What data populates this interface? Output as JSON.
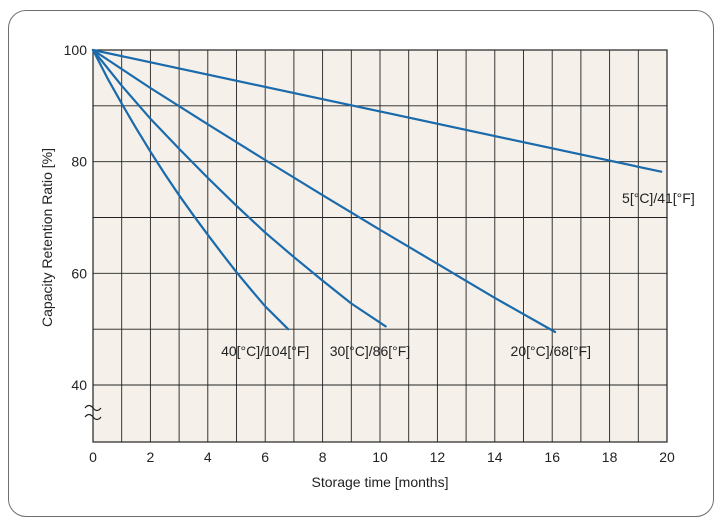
{
  "chart_data": {
    "type": "line",
    "title": "",
    "xlabel": "Storage time [months]",
    "ylabel": "Capacity Retention Ratio [%]",
    "xlim": [
      0,
      20
    ],
    "ylim": [
      40,
      100
    ],
    "y_break": true,
    "x_ticks": [
      0,
      2,
      4,
      6,
      8,
      10,
      12,
      14,
      16,
      18,
      20
    ],
    "y_ticks": [
      100,
      80,
      60,
      40
    ],
    "grid": true,
    "background_color": "#f5f1ea",
    "line_color": "#1a6aac",
    "series": [
      {
        "name": "5[°C]/41[°F]",
        "x": [
          0,
          19.8
        ],
        "y": [
          100,
          78.2
        ]
      },
      {
        "name": "20[°C]/68[°F]",
        "x": [
          0,
          2,
          4,
          6,
          8,
          10,
          12,
          14,
          16.1
        ],
        "y": [
          100,
          93.2,
          86.7,
          80.3,
          74.0,
          67.8,
          61.7,
          55.6,
          49.5
        ]
      },
      {
        "name": "30[°C]/86[°F]",
        "x": [
          0,
          1,
          2,
          3,
          4,
          5,
          6,
          7,
          8,
          9,
          10.2
        ],
        "y": [
          100,
          93.6,
          87.7,
          82.3,
          77.1,
          72.1,
          67.3,
          62.9,
          58.7,
          54.6,
          50.5
        ]
      },
      {
        "name": "40[°C]/104[°F]",
        "x": [
          0,
          0.5,
          1,
          1.5,
          2,
          2.5,
          3,
          3.5,
          4,
          4.5,
          5,
          5.5,
          6,
          6.8
        ],
        "y": [
          100,
          95.0,
          90.4,
          86.0,
          81.8,
          77.8,
          74.0,
          70.4,
          66.9,
          63.5,
          60.2,
          57.1,
          54.1,
          50.0
        ]
      }
    ],
    "series_label_positions": {
      "5[°C]/41[°F]": [
        19.7,
        73.5
      ],
      "20[°C]/68[°F]": [
        15.95,
        46.1
      ],
      "30[°C]/86[°F]": [
        9.65,
        46.1
      ],
      "40[°C]/104[°F]": [
        6.0,
        46.1
      ]
    }
  }
}
